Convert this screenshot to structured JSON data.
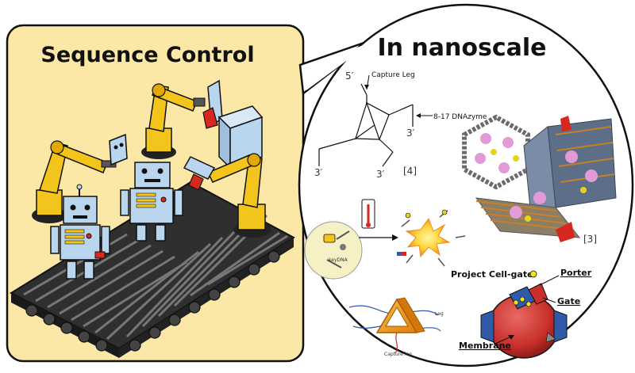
{
  "left_panel": {
    "title": "Sequence Control"
  },
  "right_panel": {
    "title": "In nanoscale",
    "dna_structure": {
      "five_prime": "5′",
      "capture_leg": "Capture Leg",
      "dnazyme": "8-17 DNAzyme",
      "three_prime_a": "3′",
      "three_prime_b": "3′",
      "three_prime_c": "3′",
      "ref": "[4]"
    },
    "origami": {
      "ref": "[3]"
    },
    "cell_gate": {
      "project_label": "Project Cell-gate",
      "keydna": "keyDNA"
    },
    "tetrahedron": {
      "leg": "Leg",
      "capture_leg": "Capture leg"
    },
    "membrane_model": {
      "porter": "Porter",
      "gate": "Gate",
      "membrane": "Membrane"
    }
  },
  "colors": {
    "left_bg": "#fbe7a6",
    "robot_yellow": "#f3c51c",
    "robot_blue": "#b9d6ee",
    "accent_red": "#d8271e",
    "conveyor": "#3b3b3b",
    "membrane_red": "#c9302c",
    "membrane_blue": "#2f5aa8",
    "prism_orange": "#f0a020"
  }
}
